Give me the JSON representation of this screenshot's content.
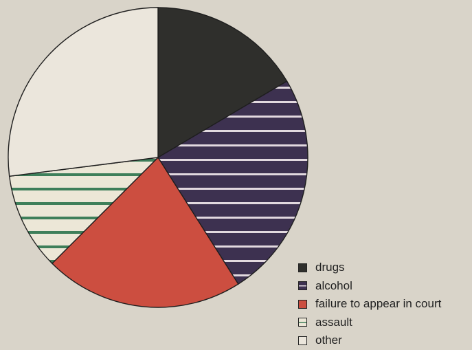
{
  "chart_data": {
    "type": "pie",
    "title": "",
    "slices": [
      {
        "label": "drugs",
        "value": 16.5,
        "color": "#2f2f2c",
        "pattern": "solid"
      },
      {
        "label": "alcohol",
        "value": 24.5,
        "color": "#3d3150",
        "pattern": "stripes",
        "stripe_color": "#e2d9df"
      },
      {
        "label": "failure to appear in court",
        "value": 21.5,
        "color": "#cc4e40",
        "pattern": "solid"
      },
      {
        "label": "assault",
        "value": 10.5,
        "color": "#ece7d7",
        "pattern": "stripes",
        "stripe_color": "#3e7f5a"
      },
      {
        "label": "other",
        "value": 27,
        "color": "#ebe6dc",
        "pattern": "solid"
      }
    ],
    "start_angle_deg": 0,
    "legend_position": "bottom-right"
  }
}
